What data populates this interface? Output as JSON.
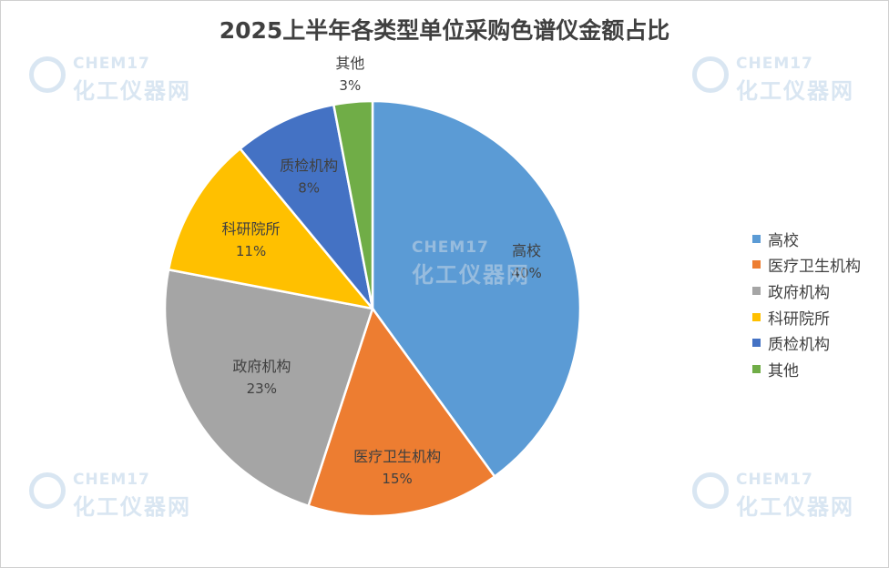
{
  "chart_data": {
    "type": "pie",
    "title": "2025上半年各类型单位采购色谱仪金额占比",
    "categories": [
      "高校",
      "医疗卫生机构",
      "政府机构",
      "科研院所",
      "质检机构",
      "其他"
    ],
    "values": [
      40,
      15,
      23,
      11,
      8,
      3
    ],
    "value_labels": [
      "40%",
      "15%",
      "23%",
      "11%",
      "8%",
      "3%"
    ],
    "colors": [
      "#5B9BD5",
      "#ED7D31",
      "#A5A5A5",
      "#FFC000",
      "#4472C4",
      "#70AD47"
    ],
    "start_angle_deg": 0,
    "direction": "clockwise",
    "legend_position": "right",
    "data_labels": "category and percent"
  },
  "watermark": {
    "line1": "CHEM17",
    "line2": "化工仪器网"
  }
}
